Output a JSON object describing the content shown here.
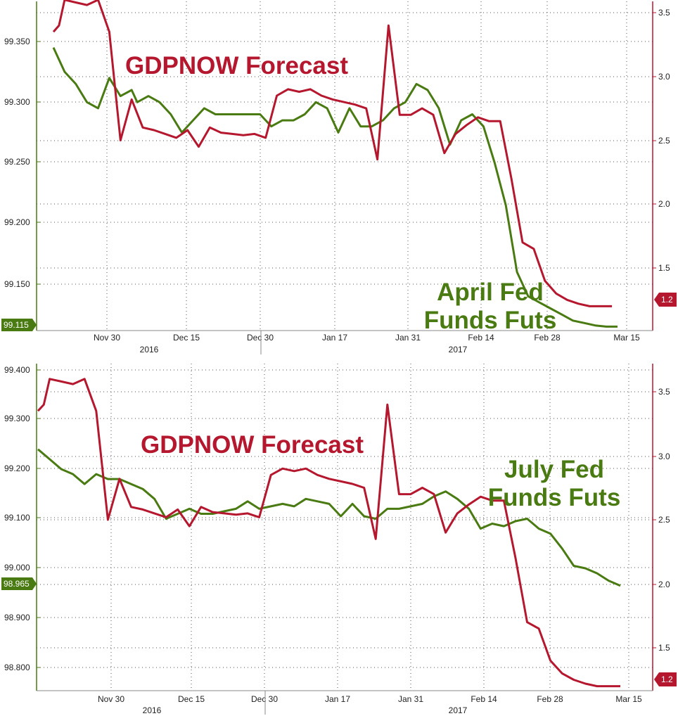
{
  "chart_data": [
    {
      "type": "line",
      "annotations": [
        "GDPNOW Forecast",
        "April Fed",
        "Funds Futs"
      ],
      "x_ticks": [
        "Nov 30",
        "Dec 15",
        "Dec 30",
        "Jan 17",
        "Jan 31",
        "Feb 14",
        "Feb 28",
        "Mar 15"
      ],
      "year_labels": [
        "2016",
        "2017"
      ],
      "y_left_ticks": [
        "99.150",
        "99.200",
        "99.250",
        "99.300",
        "99.350"
      ],
      "y_right_ticks": [
        "1.5",
        "2.0",
        "2.5",
        "3.0",
        "3.5"
      ],
      "y_left_range": [
        99.11,
        99.385
      ],
      "y_right_range": [
        1.0,
        3.6
      ],
      "series": [
        {
          "name": "April Fed Funds Futs",
          "axis": "left",
          "color": "#4a7a12",
          "last_value_label": "99.115",
          "x": [
            0,
            2,
            4,
            6,
            8,
            10,
            12,
            14,
            15,
            17,
            19,
            21,
            23,
            25,
            27,
            29,
            31,
            33,
            35,
            37,
            39,
            41,
            43,
            45,
            47,
            49,
            51,
            53,
            55,
            57,
            59,
            61,
            63,
            65,
            67,
            69,
            71,
            73,
            75,
            77,
            79,
            81,
            83,
            85,
            87,
            89,
            91,
            93,
            95,
            97,
            99,
            101
          ],
          "values": [
            99.345,
            99.325,
            99.315,
            99.3,
            99.295,
            99.32,
            99.305,
            99.31,
            99.3,
            99.305,
            99.3,
            99.29,
            99.275,
            99.285,
            99.295,
            99.29,
            99.29,
            99.29,
            99.29,
            99.29,
            99.28,
            99.285,
            99.285,
            99.29,
            99.3,
            99.295,
            99.275,
            99.295,
            99.28,
            99.28,
            99.285,
            99.295,
            99.3,
            99.315,
            99.31,
            99.295,
            99.265,
            99.285,
            99.29,
            99.28,
            99.25,
            99.215,
            99.16,
            99.14,
            99.135,
            99.13,
            99.125,
            99.12,
            99.118,
            99.116,
            99.115,
            99.115
          ]
        },
        {
          "name": "GDPNOW Forecast",
          "axis": "right",
          "color": "#b5172e",
          "last_value_label": "1.2",
          "x": [
            0,
            1,
            2,
            4,
            6,
            8,
            10,
            12,
            14,
            16,
            18,
            20,
            22,
            24,
            26,
            28,
            30,
            32,
            34,
            36,
            38,
            40,
            42,
            44,
            46,
            48,
            50,
            52,
            54,
            56,
            58,
            60,
            62,
            64,
            66,
            68,
            70,
            72,
            74,
            76,
            78,
            80,
            82,
            84,
            86,
            88,
            90,
            92,
            94,
            96,
            98,
            100
          ],
          "values": [
            3.35,
            3.4,
            3.6,
            3.58,
            3.56,
            3.6,
            3.35,
            2.5,
            2.82,
            2.6,
            2.58,
            2.55,
            2.52,
            2.58,
            2.45,
            2.6,
            2.56,
            2.55,
            2.54,
            2.55,
            2.52,
            2.85,
            2.9,
            2.88,
            2.9,
            2.85,
            2.82,
            2.8,
            2.78,
            2.75,
            2.35,
            3.4,
            2.7,
            2.7,
            2.75,
            2.7,
            2.4,
            2.55,
            2.62,
            2.68,
            2.65,
            2.65,
            2.2,
            1.7,
            1.65,
            1.4,
            1.3,
            1.25,
            1.22,
            1.2,
            1.2,
            1.2
          ]
        }
      ]
    },
    {
      "type": "line",
      "annotations": [
        "GDPNOW Forecast",
        "July Fed",
        "Funds Futs"
      ],
      "x_ticks": [
        "Nov 30",
        "Dec 15",
        "Dec 30",
        "Jan 17",
        "Jan 31",
        "Feb 14",
        "Feb 28",
        "Mar 15"
      ],
      "year_labels": [
        "2016",
        "2017"
      ],
      "y_left_ticks": [
        "98.800",
        "98.900",
        "99.000",
        "99.100",
        "99.200",
        "99.300",
        "99.400"
      ],
      "y_right_ticks": [
        "1.5",
        "2.0",
        "2.5",
        "3.0",
        "3.5"
      ],
      "y_left_range": [
        98.745,
        99.44
      ],
      "y_right_range": [
        0.95,
        3.75
      ],
      "series": [
        {
          "name": "July Fed Funds Futs",
          "axis": "left",
          "color": "#4a7a12",
          "last_value_label": "98.965",
          "x": [
            0,
            2,
            4,
            6,
            8,
            10,
            12,
            14,
            16,
            18,
            20,
            22,
            24,
            26,
            28,
            30,
            32,
            34,
            36,
            38,
            40,
            42,
            44,
            46,
            48,
            50,
            52,
            54,
            56,
            58,
            60,
            62,
            64,
            66,
            68,
            70,
            72,
            74,
            76,
            78,
            80,
            82,
            84,
            86,
            88,
            90,
            92,
            94,
            96,
            98,
            100
          ],
          "values": [
            99.24,
            99.22,
            99.2,
            99.19,
            99.17,
            99.19,
            99.18,
            99.18,
            99.17,
            99.16,
            99.14,
            99.1,
            99.11,
            99.12,
            99.11,
            99.11,
            99.115,
            99.12,
            99.135,
            99.12,
            99.125,
            99.13,
            99.125,
            99.14,
            99.135,
            99.13,
            99.105,
            99.13,
            99.105,
            99.1,
            99.12,
            99.12,
            99.125,
            99.13,
            99.145,
            99.155,
            99.14,
            99.12,
            99.08,
            99.09,
            99.085,
            99.095,
            99.1,
            99.08,
            99.07,
            99.04,
            99.005,
            99.0,
            98.99,
            98.975,
            98.965
          ]
        },
        {
          "name": "GDPNOW Forecast",
          "axis": "right",
          "color": "#b5172e",
          "last_value_label": "1.2",
          "x": [
            0,
            1,
            2,
            4,
            6,
            8,
            10,
            12,
            14,
            16,
            18,
            20,
            22,
            24,
            26,
            28,
            30,
            32,
            34,
            36,
            38,
            40,
            42,
            44,
            46,
            48,
            50,
            52,
            54,
            56,
            58,
            60,
            62,
            64,
            66,
            68,
            70,
            72,
            74,
            76,
            78,
            80,
            82,
            84,
            86,
            88,
            90,
            92,
            94,
            96,
            98,
            100
          ],
          "values": [
            3.35,
            3.4,
            3.6,
            3.58,
            3.56,
            3.6,
            3.35,
            2.5,
            2.82,
            2.6,
            2.58,
            2.55,
            2.52,
            2.58,
            2.45,
            2.6,
            2.56,
            2.55,
            2.54,
            2.55,
            2.52,
            2.85,
            2.9,
            2.88,
            2.9,
            2.85,
            2.82,
            2.8,
            2.78,
            2.75,
            2.35,
            3.4,
            2.7,
            2.7,
            2.75,
            2.7,
            2.4,
            2.55,
            2.62,
            2.68,
            2.65,
            2.65,
            2.2,
            1.7,
            1.65,
            1.4,
            1.3,
            1.25,
            1.22,
            1.2,
            1.2,
            1.2
          ]
        }
      ]
    }
  ]
}
